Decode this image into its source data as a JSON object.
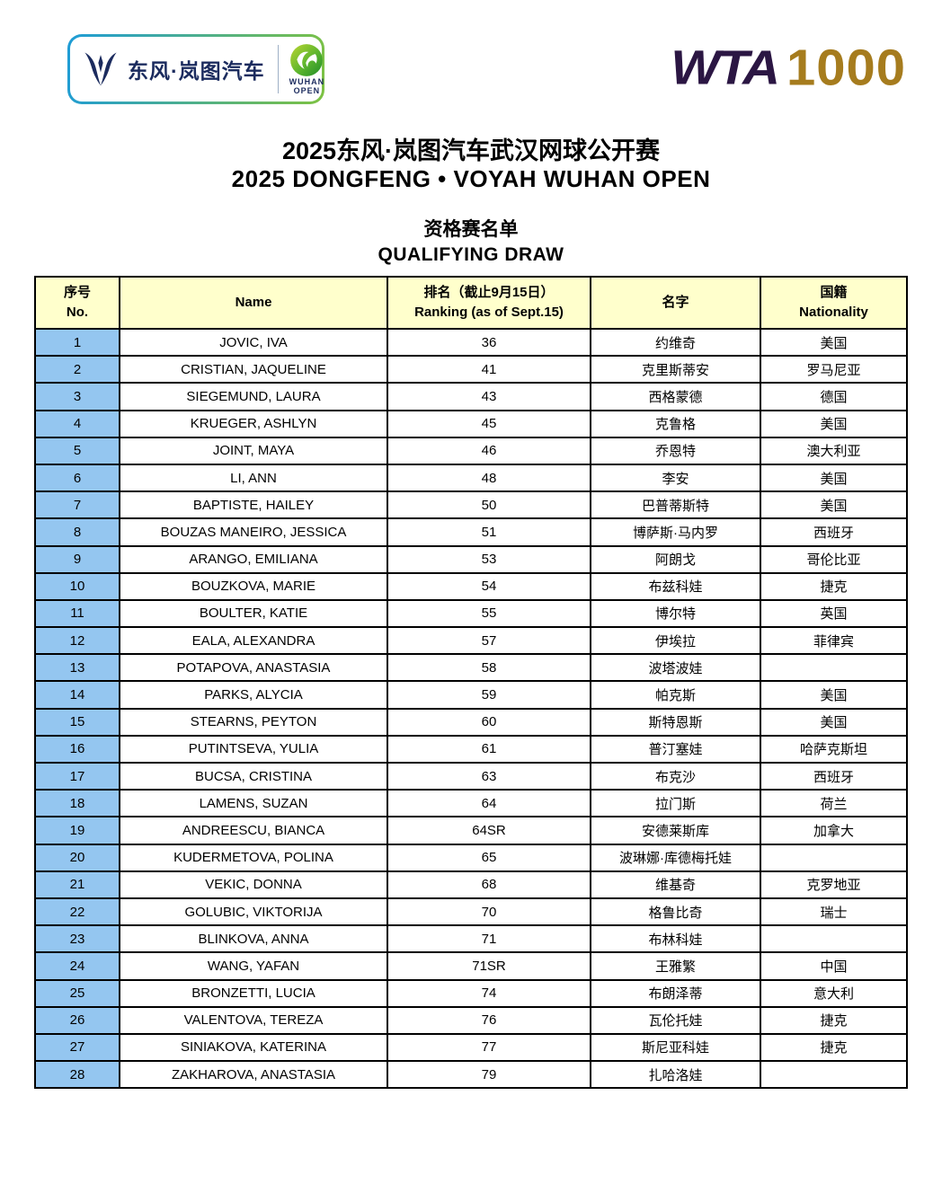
{
  "header": {
    "sponsor": {
      "brand_text": "东风·岚图汽车",
      "event_line1": "WUHAN",
      "event_line2": "OPEN"
    },
    "wta": {
      "brand": "WTA",
      "level": "1000"
    }
  },
  "title": {
    "zh": "2025东风·岚图汽车武汉网球公开赛",
    "en": "2025 DONGFENG • VOYAH WUHAN OPEN"
  },
  "subtitle": {
    "zh": "资格赛名单",
    "en": "QUALIFYING DRAW"
  },
  "table": {
    "columns": [
      {
        "zh": "序号",
        "en": "No."
      },
      {
        "zh": "",
        "en": "Name"
      },
      {
        "zh": "排名（截止9月15日）",
        "en": "Ranking (as of Sept.15)"
      },
      {
        "zh": "名字",
        "en": ""
      },
      {
        "zh": "国籍",
        "en": "Nationality"
      }
    ],
    "rows": [
      {
        "no": "1",
        "name": "JOVIC, IVA",
        "ranking": "36",
        "zh_name": "约维奇",
        "nationality": "美国"
      },
      {
        "no": "2",
        "name": "CRISTIAN, JAQUELINE",
        "ranking": "41",
        "zh_name": "克里斯蒂安",
        "nationality": "罗马尼亚"
      },
      {
        "no": "3",
        "name": "SIEGEMUND, LAURA",
        "ranking": "43",
        "zh_name": "西格蒙德",
        "nationality": "德国"
      },
      {
        "no": "4",
        "name": "KRUEGER, ASHLYN",
        "ranking": "45",
        "zh_name": "克鲁格",
        "nationality": "美国"
      },
      {
        "no": "5",
        "name": "JOINT, MAYA",
        "ranking": "46",
        "zh_name": "乔恩特",
        "nationality": "澳大利亚"
      },
      {
        "no": "6",
        "name": "LI, ANN",
        "ranking": "48",
        "zh_name": "李安",
        "nationality": "美国"
      },
      {
        "no": "7",
        "name": "BAPTISTE, HAILEY",
        "ranking": "50",
        "zh_name": "巴普蒂斯特",
        "nationality": "美国"
      },
      {
        "no": "8",
        "name": "BOUZAS MANEIRO, JESSICA",
        "ranking": "51",
        "zh_name": "博萨斯·马内罗",
        "nationality": "西班牙"
      },
      {
        "no": "9",
        "name": "ARANGO, EMILIANA",
        "ranking": "53",
        "zh_name": "阿朗戈",
        "nationality": "哥伦比亚"
      },
      {
        "no": "10",
        "name": "BOUZKOVA, MARIE",
        "ranking": "54",
        "zh_name": "布兹科娃",
        "nationality": "捷克"
      },
      {
        "no": "11",
        "name": "BOULTER, KATIE",
        "ranking": "55",
        "zh_name": "博尔特",
        "nationality": "英国"
      },
      {
        "no": "12",
        "name": "EALA, ALEXANDRA",
        "ranking": "57",
        "zh_name": "伊埃拉",
        "nationality": "菲律宾"
      },
      {
        "no": "13",
        "name": "POTAPOVA, ANASTASIA",
        "ranking": "58",
        "zh_name": "波塔波娃",
        "nationality": ""
      },
      {
        "no": "14",
        "name": "PARKS, ALYCIA",
        "ranking": "59",
        "zh_name": "帕克斯",
        "nationality": "美国"
      },
      {
        "no": "15",
        "name": "STEARNS, PEYTON",
        "ranking": "60",
        "zh_name": "斯特恩斯",
        "nationality": "美国"
      },
      {
        "no": "16",
        "name": "PUTINTSEVA, YULIA",
        "ranking": "61",
        "zh_name": "普汀塞娃",
        "nationality": "哈萨克斯坦"
      },
      {
        "no": "17",
        "name": "BUCSA, CRISTINA",
        "ranking": "63",
        "zh_name": "布克沙",
        "nationality": "西班牙"
      },
      {
        "no": "18",
        "name": "LAMENS, SUZAN",
        "ranking": "64",
        "zh_name": "拉门斯",
        "nationality": "荷兰"
      },
      {
        "no": "19",
        "name": "ANDREESCU, BIANCA",
        "ranking": "64SR",
        "zh_name": "安德莱斯库",
        "nationality": "加拿大"
      },
      {
        "no": "20",
        "name": "KUDERMETOVA, POLINA",
        "ranking": "65",
        "zh_name": "波琳娜·库德梅托娃",
        "nationality": ""
      },
      {
        "no": "21",
        "name": "VEKIC, DONNA",
        "ranking": "68",
        "zh_name": "维基奇",
        "nationality": "克罗地亚"
      },
      {
        "no": "22",
        "name": "GOLUBIC, VIKTORIJA",
        "ranking": "70",
        "zh_name": "格鲁比奇",
        "nationality": "瑞士"
      },
      {
        "no": "23",
        "name": "BLINKOVA, ANNA",
        "ranking": "71",
        "zh_name": "布林科娃",
        "nationality": ""
      },
      {
        "no": "24",
        "name": "WANG, YAFAN",
        "ranking": "71SR",
        "zh_name": "王雅繁",
        "nationality": "中国"
      },
      {
        "no": "25",
        "name": "BRONZETTI, LUCIA",
        "ranking": "74",
        "zh_name": "布朗泽蒂",
        "nationality": "意大利"
      },
      {
        "no": "26",
        "name": "VALENTOVA, TEREZA",
        "ranking": "76",
        "zh_name": "瓦伦托娃",
        "nationality": "捷克"
      },
      {
        "no": "27",
        "name": "SINIAKOVA, KATERINA",
        "ranking": "77",
        "zh_name": "斯尼亚科娃",
        "nationality": "捷克"
      },
      {
        "no": "28",
        "name": "ZAKHAROVA, ANASTASIA",
        "ranking": "79",
        "zh_name": "扎哈洛娃",
        "nationality": ""
      }
    ]
  },
  "colors": {
    "header_yellow": "#FFFFCC",
    "no_col_blue": "#94C6F0",
    "wta_purple": "#2B1643",
    "wta_gold": "#A67C1E",
    "brand_navy": "#1B2B5E",
    "logo_gradient_blue": "#1E9CD7",
    "logo_gradient_green": "#7DC242",
    "wuhan_green_light": "#BCD631",
    "wuhan_green_dark": "#1E8C28"
  }
}
